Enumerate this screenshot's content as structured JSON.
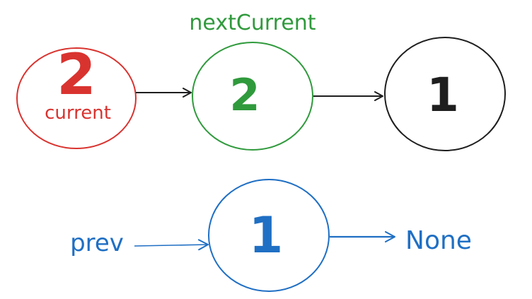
{
  "colors": {
    "red": "#d9332f",
    "green": "#2f9a3c",
    "black": "#1e1e1e",
    "blue": "#1f6fc4",
    "background": "#ffffff"
  },
  "nodes": {
    "current": {
      "value": "2",
      "label": "current",
      "color": "#d9332f"
    },
    "next_current": {
      "value": "2",
      "label": "nextCurrent",
      "color": "#2f9a3c"
    },
    "tail": {
      "value": "1",
      "color": "#1e1e1e"
    },
    "prev_node": {
      "value": "1",
      "color": "#1f6fc4"
    }
  },
  "labels": {
    "prev": "prev",
    "none": "None"
  }
}
